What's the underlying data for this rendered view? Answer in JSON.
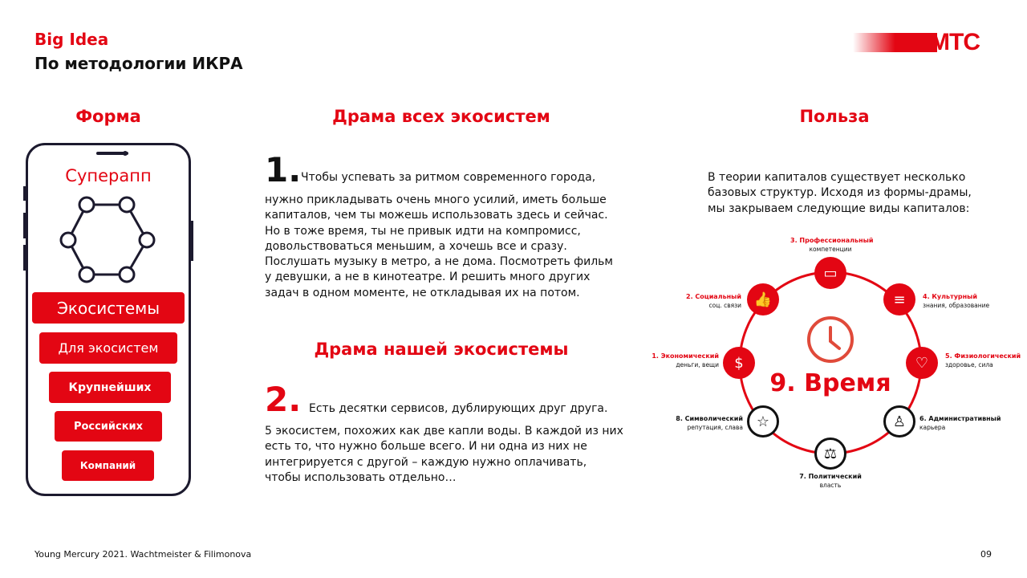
{
  "header": {
    "title": "Big Idea",
    "subtitle": "По методологии ИКРА",
    "logo": "МТС"
  },
  "forma": {
    "heading": "Форма",
    "app_title": "Суперапп",
    "buttons": [
      "Экосистемы",
      "Для экосистем",
      "Крупнейших",
      "Российских",
      "Компаний"
    ]
  },
  "drama": {
    "heading1": "Драма всех экосистем",
    "num1": "1.",
    "lead1": "Чтобы успевать за ритмом современного города,",
    "text1": "нужно прикладывать очень много усилий, иметь больше капиталов, чем ты можешь использовать здесь и сейчас. Но в тоже время, ты не привык идти на компромисс, довольствоваться меньшим, а хочешь все и сразу. Послушать музыку в метро, а не дома. Посмотреть фильм у девушки, а не в кинотеатре. И решить много других задач в одном моменте, не откладывая их на потом.",
    "heading2": "Драма нашей экосистемы",
    "num2": "2.",
    "lead2": "Есть десятки сервисов, дублирующих друг друга.",
    "text2": "5 экосистем, похожих как две капли воды. В каждой из них есть то, что нужно больше всего. И ни одна из них не интегрируется с другой – каждую нужно оплачивать, чтобы использовать отдельно…"
  },
  "benefit": {
    "heading": "Польза",
    "text": "В теории капиталов существует несколько базовых структур. Исходя из формы-драмы, мы закрываем следующие виды капиталов:",
    "center": "9. Время",
    "capitals": [
      {
        "title": "1. Экономический",
        "sub": "деньги, вещи",
        "icon": "coins-icon"
      },
      {
        "title": "2. Социальный",
        "sub": "соц. связи",
        "icon": "thumbs-up-icon"
      },
      {
        "title": "3. Профессиональный",
        "sub": "компетенции",
        "icon": "briefcase-icon"
      },
      {
        "title": "4. Культурный",
        "sub": "знания, образование",
        "icon": "scroll-icon"
      },
      {
        "title": "5. Физиологический",
        "sub": "здоровье, сила",
        "icon": "heart-pulse-icon"
      },
      {
        "title": "6. Административный",
        "sub": "карьера",
        "icon": "official-icon"
      },
      {
        "title": "7. Политический",
        "sub": "власть",
        "icon": "scales-icon"
      },
      {
        "title": "8. Символический",
        "sub": "репутация, слава",
        "icon": "star-icon"
      }
    ]
  },
  "footer": {
    "credit": "Young Mercury 2021. Wachtmeister & Filimonova",
    "page": "09"
  },
  "colors": {
    "accent": "#e30613"
  }
}
